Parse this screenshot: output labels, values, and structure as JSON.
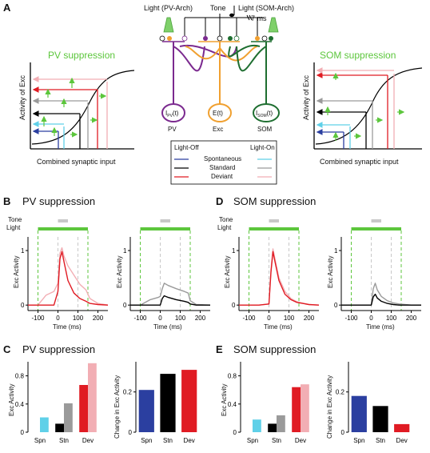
{
  "panels": {
    "A": "A",
    "B": "B",
    "C": "C",
    "D": "D",
    "E": "E"
  },
  "colors": {
    "green": "#5cc63c",
    "purple": "#7b2a8f",
    "orange": "#f0a030",
    "darkgreen": "#1e6e30",
    "blue": "#2b3fa0",
    "cyan": "#5fd0e8",
    "black": "#000000",
    "gray": "#9a9a9a",
    "red": "#e01b23",
    "pink": "#f2aeb4"
  },
  "panelA": {
    "pv_title": "PV suppression",
    "som_title": "SOM suppression",
    "ylabel": "Activity of Exc",
    "xlabel": "Combined synaptic input",
    "circuit": {
      "tone": "Tone",
      "light_pv": "Light (PV-Arch)",
      "light_som": "Light (SOM-Arch)",
      "delay": "7 ms",
      "node_pv": "I",
      "node_pv_sub": "PV",
      "node_pv_t": "(t)",
      "node_exc": "E(t)",
      "node_som": "I",
      "node_som_sub": "SOM",
      "node_som_t": "(t)",
      "label_pv": "PV",
      "label_exc": "Exc",
      "label_som": "SOM"
    },
    "legend": {
      "light_off": "Light-Off",
      "light_on": "Light-On",
      "rows": [
        "Spontaneous",
        "Standard",
        "Deviant"
      ]
    }
  },
  "panelB": {
    "title": "PV suppression",
    "tone": "Tone",
    "light": "Light",
    "ylabel": "Exc Activity",
    "xlabel": "Time (ms)",
    "yticks": [
      "0",
      "1"
    ],
    "xticks": [
      "-100",
      "0",
      "100",
      "200"
    ]
  },
  "panelD": {
    "title": "SOM suppression",
    "tone": "Tone",
    "light": "Light",
    "ylabel": "Exc Activity",
    "xlabel": "Time (ms)",
    "yticks": [
      "0",
      "1"
    ],
    "xticks": [
      "-100",
      "0",
      "100",
      "200"
    ]
  },
  "panelC": {
    "title": "PV suppression",
    "ylabel_left": "Exc Activity",
    "ylabel_right": "Change in Exc Activity",
    "categories": [
      "Spn",
      "Stn",
      "Dev"
    ],
    "left_yticks": [
      "0",
      "0.4",
      "0.8"
    ],
    "right_yticks": [
      "0",
      "0.2"
    ]
  },
  "panelE": {
    "title": "SOM suppression",
    "ylabel_left": "Exc Activity",
    "ylabel_right": "Change in Exc Activity",
    "categories": [
      "Spn",
      "Stn",
      "Dev"
    ],
    "left_yticks": [
      "0",
      "0.4",
      "0.8"
    ],
    "right_yticks": [
      "0",
      "0.2"
    ]
  },
  "chart_data": [
    {
      "type": "line",
      "panel": "B-left",
      "x": [
        -150,
        -100,
        -60,
        -20,
        0,
        10,
        20,
        30,
        50,
        80,
        110,
        140,
        160,
        200,
        250
      ],
      "series": [
        {
          "name": "Light-Off Deviant",
          "color": "#e01b23",
          "values": [
            0,
            0,
            0,
            0,
            0.25,
            0.85,
            0.98,
            0.8,
            0.45,
            0.22,
            0.12,
            0.07,
            0.03,
            0.01,
            0
          ]
        },
        {
          "name": "Light-On Deviant",
          "color": "#f2aeb4",
          "values": [
            0,
            0,
            0.18,
            0.25,
            0.4,
            0.95,
            1.05,
            0.9,
            0.72,
            0.55,
            0.38,
            0.28,
            0.12,
            0.03,
            0
          ]
        }
      ],
      "ylim": [
        -0.1,
        1.25
      ],
      "xlim": [
        -150,
        250
      ]
    },
    {
      "type": "line",
      "panel": "B-right",
      "x": [
        -150,
        -100,
        -50,
        -10,
        0,
        10,
        20,
        40,
        80,
        120,
        140,
        150,
        180,
        250
      ],
      "series": [
        {
          "name": "Light-Off Standard",
          "color": "#000000",
          "values": [
            0,
            0,
            0,
            0,
            0,
            0.12,
            0.17,
            0.14,
            0.1,
            0.07,
            0.05,
            0.02,
            0,
            0
          ]
        },
        {
          "name": "Light-On Standard",
          "color": "#9a9a9a",
          "values": [
            0,
            0,
            0.1,
            0.14,
            0.16,
            0.3,
            0.4,
            0.36,
            0.3,
            0.25,
            0.22,
            0.08,
            0.01,
            0
          ]
        }
      ],
      "ylim": [
        -0.1,
        1.25
      ],
      "xlim": [
        -150,
        250
      ]
    },
    {
      "type": "line",
      "panel": "D-left",
      "x": [
        -150,
        -100,
        -50,
        0,
        10,
        20,
        30,
        50,
        80,
        110,
        140,
        200,
        250
      ],
      "series": [
        {
          "name": "Light-Off Deviant",
          "color": "#e01b23",
          "values": [
            0,
            0,
            0,
            0.02,
            0.6,
            0.98,
            0.8,
            0.45,
            0.2,
            0.1,
            0.05,
            0.01,
            0
          ]
        },
        {
          "name": "Light-On Deviant",
          "color": "#f2aeb4",
          "values": [
            0,
            0,
            0,
            0.02,
            0.65,
            1.03,
            0.85,
            0.5,
            0.25,
            0.12,
            0.06,
            0.01,
            0
          ]
        }
      ],
      "ylim": [
        -0.1,
        1.25
      ],
      "xlim": [
        -150,
        250
      ]
    },
    {
      "type": "line",
      "panel": "D-right",
      "x": [
        -150,
        -100,
        -50,
        0,
        10,
        20,
        30,
        50,
        80,
        110,
        140,
        200,
        250
      ],
      "series": [
        {
          "name": "Light-Off Standard",
          "color": "#000000",
          "values": [
            0,
            0,
            0,
            0,
            0.15,
            0.2,
            0.13,
            0.07,
            0.03,
            0.01,
            0,
            0,
            0
          ]
        },
        {
          "name": "Light-On Standard",
          "color": "#9a9a9a",
          "values": [
            0,
            0,
            0,
            0,
            0.3,
            0.4,
            0.28,
            0.16,
            0.08,
            0.04,
            0.02,
            0,
            0
          ]
        }
      ],
      "ylim": [
        -0.1,
        1.25
      ],
      "xlim": [
        -150,
        250
      ]
    },
    {
      "type": "bar",
      "panel": "C-left",
      "categories": [
        "Spn",
        "Stn",
        "Dev"
      ],
      "series": [
        {
          "name": "Light-Off",
          "colors": [
            "#5fd0e8",
            "#000000",
            "#e01b23"
          ],
          "values": [
            0.0,
            0.12,
            0.67
          ]
        },
        {
          "name": "Light-On",
          "colors": [
            "#5fd0e8",
            "#9a9a9a",
            "#f2aeb4"
          ],
          "values": [
            0.21,
            0.41,
            0.98
          ]
        }
      ],
      "ylim": [
        0,
        1.0
      ]
    },
    {
      "type": "bar",
      "panel": "C-right",
      "categories": [
        "Spn",
        "Stn",
        "Dev"
      ],
      "colors": [
        "#2b3fa0",
        "#000000",
        "#e01b23"
      ],
      "values": [
        0.21,
        0.29,
        0.31
      ],
      "ylim": [
        0,
        0.35
      ]
    },
    {
      "type": "bar",
      "panel": "E-left",
      "categories": [
        "Spn",
        "Stn",
        "Dev"
      ],
      "series": [
        {
          "name": "Light-Off",
          "colors": [
            "#5fd0e8",
            "#000000",
            "#e01b23"
          ],
          "values": [
            0.0,
            0.12,
            0.64
          ]
        },
        {
          "name": "Light-On",
          "colors": [
            "#5fd0e8",
            "#9a9a9a",
            "#f2aeb4"
          ],
          "values": [
            0.18,
            0.24,
            0.68
          ]
        }
      ],
      "ylim": [
        0,
        1.0
      ]
    },
    {
      "type": "bar",
      "panel": "E-right",
      "categories": [
        "Spn",
        "Stn",
        "Dev"
      ],
      "colors": [
        "#2b3fa0",
        "#000000",
        "#e01b23"
      ],
      "values": [
        0.18,
        0.13,
        0.04
      ],
      "ylim": [
        0,
        0.35
      ]
    }
  ]
}
